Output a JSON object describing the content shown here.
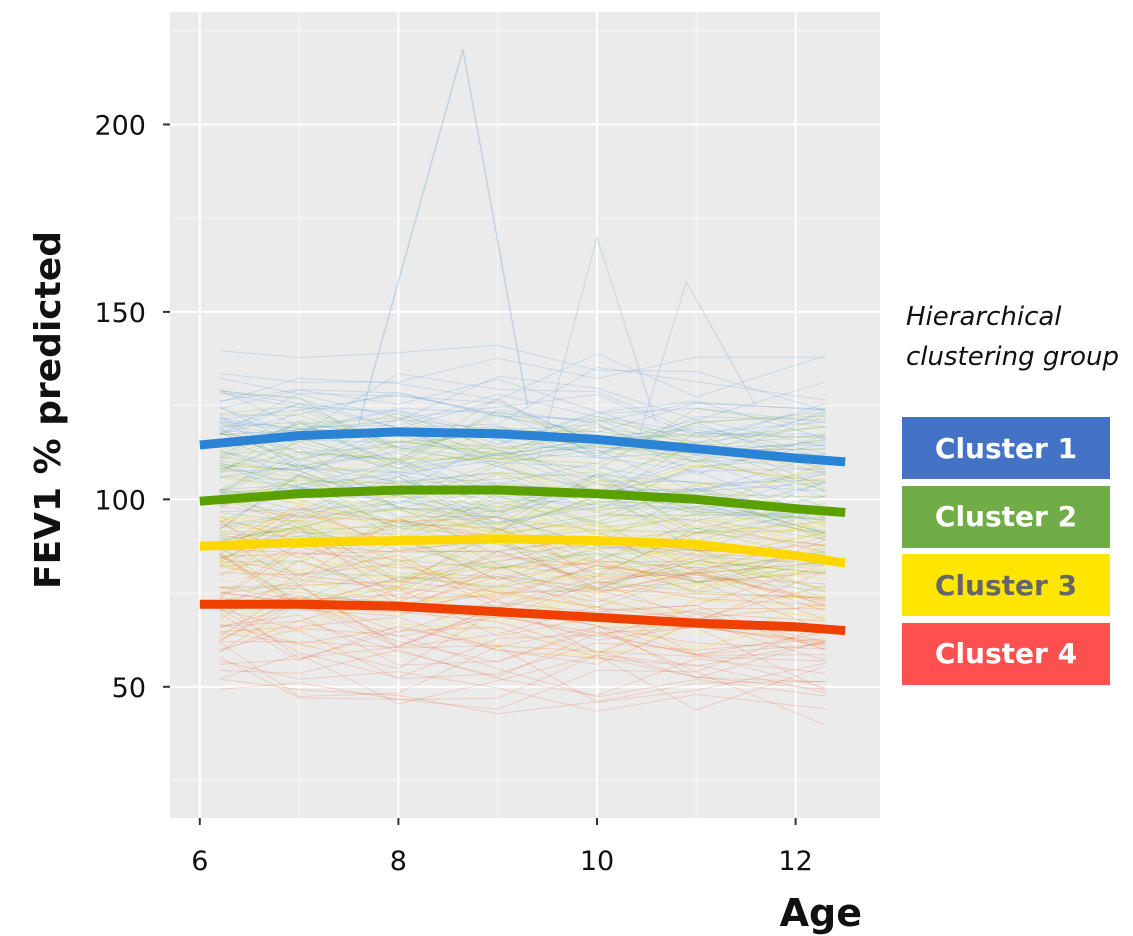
{
  "chart_data": {
    "type": "line",
    "xlabel": "Age",
    "ylabel": "FEV1 % predicted",
    "xlim": [
      5.7,
      12.85
    ],
    "ylim": [
      15,
      230
    ],
    "x_ticks": [
      6,
      8,
      10,
      12
    ],
    "y_ticks": [
      50,
      100,
      150,
      200
    ],
    "grid": true,
    "background": "#ebebeb",
    "legend": {
      "title_lines": [
        "Hierarchical",
        "clustering group"
      ],
      "placement": "right"
    },
    "series": [
      {
        "name": "Cluster 1",
        "color": "#4472c4",
        "line_color": "#2b83d6",
        "text_color": "#ffffff",
        "x": [
          6,
          7,
          8,
          9,
          10,
          11,
          12,
          12.5
        ],
        "y": [
          114.5,
          117,
          118,
          117.5,
          116,
          113.5,
          111,
          110
        ]
      },
      {
        "name": "Cluster 2",
        "color": "#70ad47",
        "line_color": "#5aa000",
        "text_color": "#ffffff",
        "x": [
          6,
          7,
          8,
          9,
          10,
          11,
          12,
          12.5
        ],
        "y": [
          99.5,
          101.5,
          102.5,
          102.5,
          101.5,
          100,
          97.5,
          96.5
        ]
      },
      {
        "name": "Cluster 3",
        "color": "#ffe600",
        "line_color": "#ffd700",
        "text_color": "#666666",
        "x": [
          6,
          7,
          8,
          9,
          10,
          11,
          12,
          12.5
        ],
        "y": [
          87.5,
          88.5,
          89,
          89.5,
          89,
          88,
          85,
          83
        ]
      },
      {
        "name": "Cluster 4",
        "color": "#ff5050",
        "line_color": "#f04000",
        "text_color": "#ffffff",
        "x": [
          6,
          7,
          8,
          9,
          10,
          11,
          12,
          12.5
        ],
        "y": [
          72,
          72,
          71.5,
          70,
          68.5,
          67,
          66,
          65
        ]
      }
    ]
  }
}
